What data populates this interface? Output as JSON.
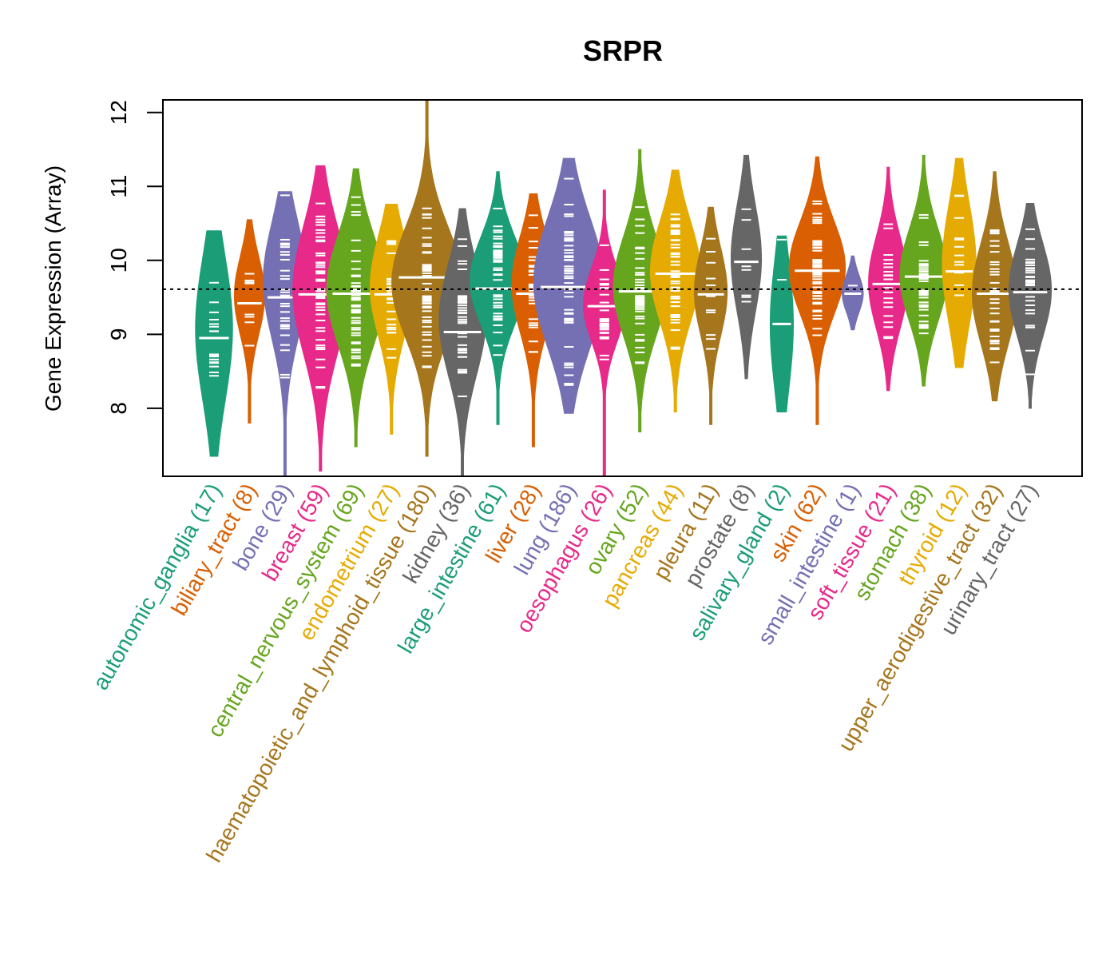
{
  "chart_data": {
    "type": "violin",
    "title": "SRPR",
    "xlabel": "",
    "ylabel": "Gene Expression (Array)",
    "ylim": [
      7.08,
      12.17
    ],
    "yticks": [
      8,
      9,
      10,
      11,
      12
    ],
    "reference_line": 9.61,
    "grid": false,
    "legend": "none",
    "categories": [
      {
        "name": "autonomic_ganglia",
        "n": 17,
        "label": "autonomic_ganglia (17)",
        "color": "#1B9E77",
        "min": 7.35,
        "max": 10.4,
        "median": 8.95,
        "q_lo": 8.3,
        "q_hi": 9.85
      },
      {
        "name": "biliary_tract",
        "n": 8,
        "label": "biliary_tract (8)",
        "color": "#D95F02",
        "min": 7.8,
        "max": 10.55,
        "median": 9.42,
        "q_lo": 9.1,
        "q_hi": 9.95
      },
      {
        "name": "bone",
        "n": 29,
        "label": "bone (29)",
        "color": "#7570B3",
        "min": 7.08,
        "max": 10.93,
        "median": 9.5,
        "q_lo": 9.1,
        "q_hi": 10.35
      },
      {
        "name": "breast",
        "n": 59,
        "label": "breast (59)",
        "color": "#E7298A",
        "min": 7.15,
        "max": 11.28,
        "median": 9.54,
        "q_lo": 8.9,
        "q_hi": 10.3
      },
      {
        "name": "central_nervous_system",
        "n": 69,
        "label": "central_nervous_system (69)",
        "color": "#66A61E",
        "min": 7.48,
        "max": 11.24,
        "median": 9.55,
        "q_lo": 9.0,
        "q_hi": 10.2
      },
      {
        "name": "endometrium",
        "n": 27,
        "label": "endometrium (27)",
        "color": "#E6AB02",
        "min": 7.65,
        "max": 10.76,
        "median": 9.54,
        "q_lo": 9.1,
        "q_hi": 10.2
      },
      {
        "name": "haematopoietic_and_lymphoid_tissue",
        "n": 180,
        "label": "haematopoietic_and_lymphoid_tissue (180)",
        "color": "#A6761D",
        "min": 7.35,
        "max": 12.17,
        "median": 9.77,
        "q_lo": 9.1,
        "q_hi": 10.3
      },
      {
        "name": "kidney",
        "n": 36,
        "label": "kidney (36)",
        "color": "#666666",
        "min": 7.08,
        "max": 10.7,
        "median": 9.03,
        "q_lo": 8.6,
        "q_hi": 9.8
      },
      {
        "name": "large_intestine",
        "n": 61,
        "label": "large_intestine (61)",
        "color": "#1B9E77",
        "min": 7.78,
        "max": 11.2,
        "median": 9.62,
        "q_lo": 9.25,
        "q_hi": 10.2
      },
      {
        "name": "liver",
        "n": 28,
        "label": "liver (28)",
        "color": "#D95F02",
        "min": 7.48,
        "max": 10.9,
        "median": 9.55,
        "q_lo": 9.15,
        "q_hi": 10.2
      },
      {
        "name": "lung",
        "n": 186,
        "label": "lung (186)",
        "color": "#7570B3",
        "min": 7.93,
        "max": 11.38,
        "median": 9.64,
        "q_lo": 9.0,
        "q_hi": 10.4
      },
      {
        "name": "oesophagus",
        "n": 26,
        "label": "oesophagus (26)",
        "color": "#E7298A",
        "min": 7.08,
        "max": 10.95,
        "median": 9.38,
        "q_lo": 9.0,
        "q_hi": 9.8
      },
      {
        "name": "ovary",
        "n": 52,
        "label": "ovary (52)",
        "color": "#66A61E",
        "min": 7.68,
        "max": 11.5,
        "median": 9.58,
        "q_lo": 9.1,
        "q_hi": 10.2
      },
      {
        "name": "pancreas",
        "n": 44,
        "label": "pancreas (44)",
        "color": "#E6AB02",
        "min": 7.95,
        "max": 11.22,
        "median": 9.82,
        "q_lo": 9.3,
        "q_hi": 10.4
      },
      {
        "name": "pleura",
        "n": 11,
        "label": "pleura (11)",
        "color": "#A6761D",
        "min": 7.78,
        "max": 10.72,
        "median": 9.54,
        "q_lo": 9.1,
        "q_hi": 10.05
      },
      {
        "name": "prostate",
        "n": 8,
        "label": "prostate (8)",
        "color": "#666666",
        "min": 8.4,
        "max": 11.42,
        "median": 9.98,
        "q_lo": 9.45,
        "q_hi": 10.6
      },
      {
        "name": "salivary_gland",
        "n": 2,
        "label": "salivary_gland (2)",
        "color": "#1B9E77",
        "min": 7.95,
        "max": 10.33,
        "median": 9.14,
        "q_lo": 8.43,
        "q_hi": 9.83
      },
      {
        "name": "skin",
        "n": 62,
        "label": "skin (62)",
        "color": "#D95F02",
        "min": 7.78,
        "max": 11.4,
        "median": 9.86,
        "q_lo": 9.4,
        "q_hi": 10.4
      },
      {
        "name": "small_intestine",
        "n": 1,
        "label": "small_intestine (1)",
        "color": "#7570B3",
        "min": 9.06,
        "max": 10.06,
        "median": 9.55,
        "q_lo": 9.55,
        "q_hi": 9.55
      },
      {
        "name": "soft_tissue",
        "n": 21,
        "label": "soft_tissue (21)",
        "color": "#E7298A",
        "min": 8.24,
        "max": 11.26,
        "median": 9.68,
        "q_lo": 9.2,
        "q_hi": 10.2
      },
      {
        "name": "stomach",
        "n": 38,
        "label": "stomach (38)",
        "color": "#66A61E",
        "min": 8.3,
        "max": 11.42,
        "median": 9.78,
        "q_lo": 9.3,
        "q_hi": 10.3
      },
      {
        "name": "thyroid",
        "n": 12,
        "label": "thyroid (12)",
        "color": "#E6AB02",
        "min": 8.55,
        "max": 11.38,
        "median": 9.85,
        "q_lo": 9.3,
        "q_hi": 10.6
      },
      {
        "name": "upper_aerodigestive_tract",
        "n": 32,
        "label": "upper_aerodigestive_tract (32)",
        "color": "#A6761D",
        "min": 8.1,
        "max": 11.2,
        "median": 9.55,
        "q_lo": 9.0,
        "q_hi": 10.1
      },
      {
        "name": "urinary_tract",
        "n": 27,
        "label": "urinary_tract (27)",
        "color": "#666666",
        "min": 8.0,
        "max": 10.77,
        "median": 9.57,
        "q_lo": 9.1,
        "q_hi": 10.1
      }
    ]
  }
}
